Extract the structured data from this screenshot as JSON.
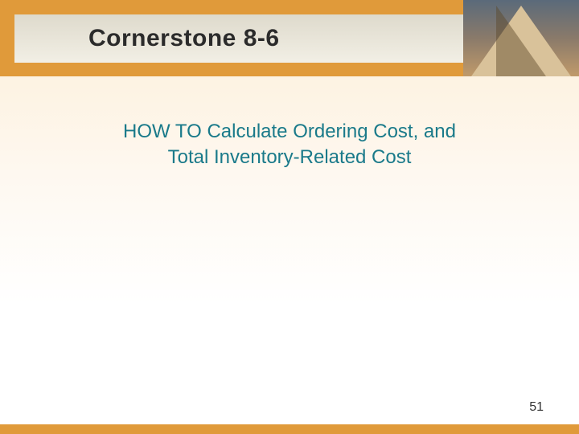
{
  "header": {
    "title": "Cornerstone 8-6",
    "title_fontsize": 30,
    "title_color": "#2b2b2b",
    "band_color": "#e09a3a",
    "inner_gradient_top": "#dedacc",
    "inner_gradient_bottom": "#f2efe5"
  },
  "pyramid": {
    "sky_top": "#5a6a7a",
    "sky_mid": "#8a7a6a",
    "sky_bottom": "#c09a6a",
    "face_color": "#d9c29a",
    "shadow_color": "rgba(90,70,40,0.45)"
  },
  "subtitle": {
    "line1": "HOW TO Calculate Ordering Cost, and",
    "line2": "Total Inventory-Related Cost",
    "color": "#1a7a8a",
    "fontsize": 24,
    "line_height": 32
  },
  "background": {
    "top_color": "#fdf3e3",
    "bottom_color": "#ffffff"
  },
  "footer": {
    "bar_color": "#e09a3a",
    "page_number": "51",
    "page_number_fontsize": 16,
    "page_number_color": "#333333"
  }
}
